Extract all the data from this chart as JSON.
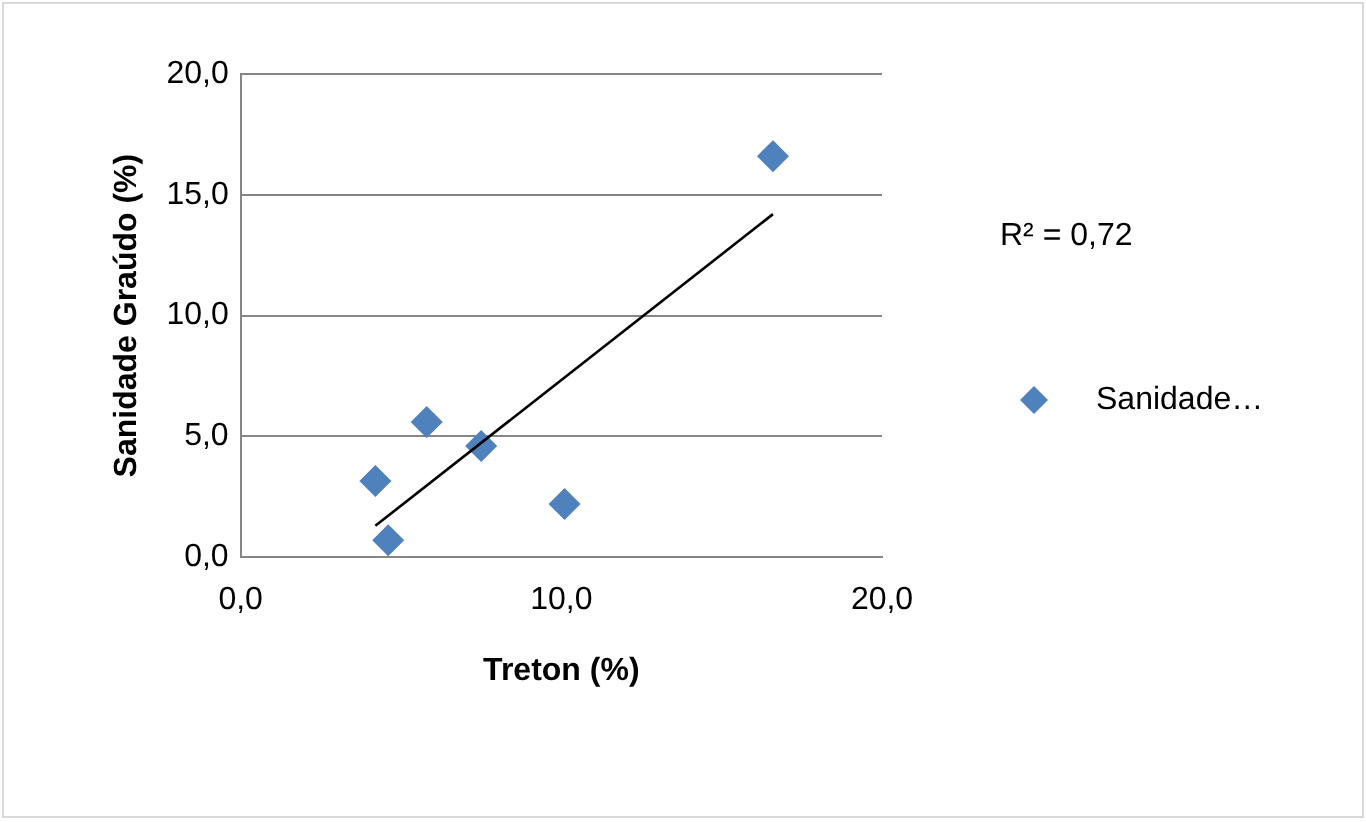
{
  "chart_data": {
    "type": "scatter",
    "xlabel": "Treton (%)",
    "ylabel": "Sanidade Graúdo (%)",
    "x": [
      5.8,
      7.5,
      4.2,
      4.6,
      10.1,
      16.6
    ],
    "series": [
      {
        "name": "Sanidade…",
        "color": "#4f81bd",
        "values": [
          5.6,
          4.6,
          3.15,
          0.7,
          2.2,
          16.6
        ]
      },
      {
        "type": "line",
        "color": "#000000",
        "x": [
          4.2,
          16.6
        ],
        "values": [
          1.3,
          14.2
        ],
        "marker": "none"
      }
    ],
    "marker": "diamond",
    "xlim": [
      0,
      20
    ],
    "xticks": [
      {
        "value": 0,
        "label": "0,0"
      },
      {
        "value": 10,
        "label": "10,0"
      },
      {
        "value": 20,
        "label": "20,0"
      }
    ],
    "ylim": [
      0,
      20
    ],
    "yticks": [
      {
        "value": 0,
        "label": "0,0"
      },
      {
        "value": 5,
        "label": "5,0"
      },
      {
        "value": 10,
        "label": "10,0"
      },
      {
        "value": 15,
        "label": "15,0"
      },
      {
        "value": 20,
        "label": "20,0"
      }
    ],
    "grid": "y",
    "legend": "right",
    "annotations": [
      "R² = 0,72"
    ]
  }
}
